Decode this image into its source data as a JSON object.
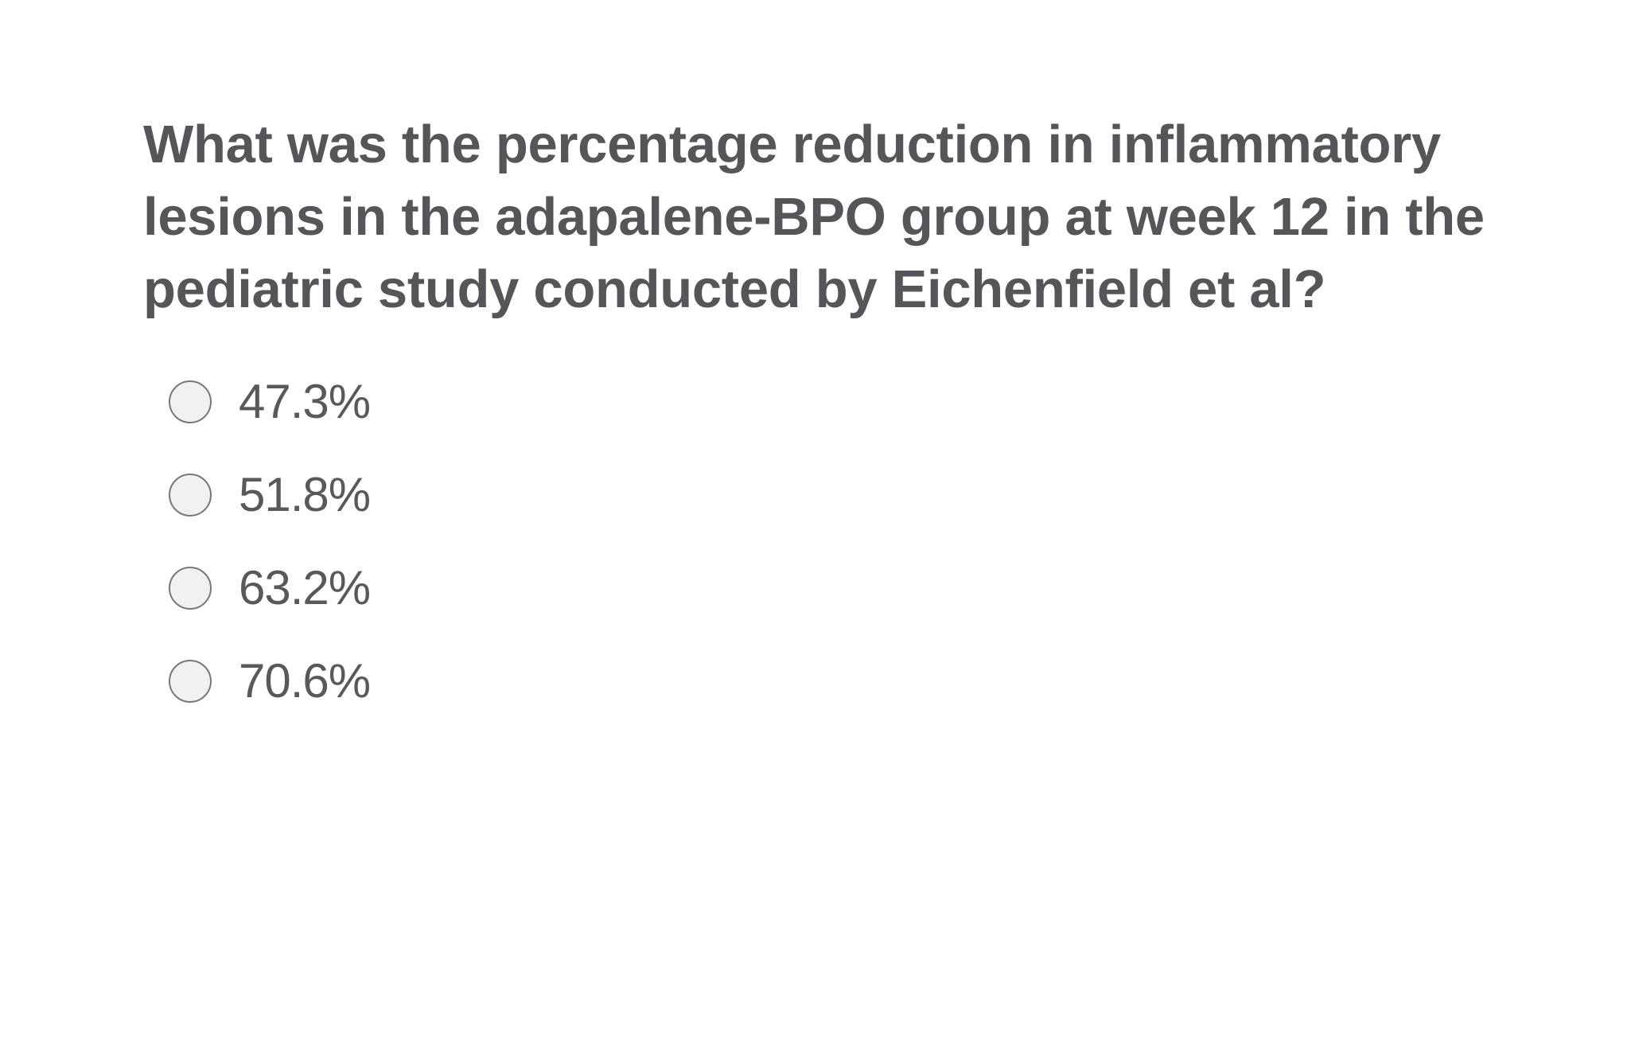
{
  "question": {
    "text": "What was the percentage reduction in inflammatory lesions in the adapalene-BPO group at week 12 in the pediatric study conducted by Eichenfield et al?"
  },
  "options": [
    {
      "label": "47.3%"
    },
    {
      "label": "51.8%"
    },
    {
      "label": "63.2%"
    },
    {
      "label": "70.6%"
    }
  ],
  "colors": {
    "text": "#58595b",
    "radio_fill": "#f0f1f0",
    "radio_border": "#77787b",
    "background": "#ffffff"
  }
}
